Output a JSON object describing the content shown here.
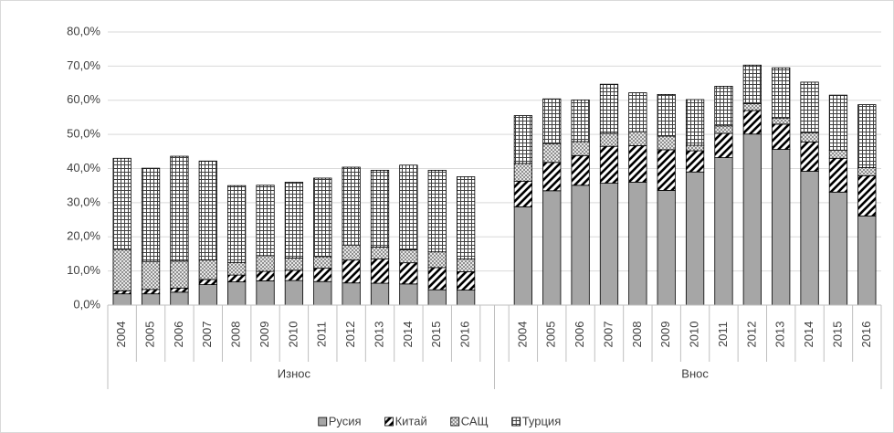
{
  "chart_data": {
    "type": "stacked_bar",
    "categories": [
      "2004",
      "2005",
      "2006",
      "2007",
      "2008",
      "2009",
      "2010",
      "2011",
      "2012",
      "2013",
      "2014",
      "2015",
      "2016",
      null,
      "2004",
      "2005",
      "2006",
      "2007",
      "2008",
      "2009",
      "2010",
      "2011",
      "2012",
      "2013",
      "2014",
      "2015",
      "2016"
    ],
    "group_labels": [
      "Износ",
      "Внос"
    ],
    "series": [
      {
        "name": "Русия",
        "color": "#a6a6a6",
        "pattern": "solid",
        "values": [
          3.3,
          3.3,
          3.8,
          6.0,
          6.8,
          7.1,
          7.2,
          6.9,
          6.5,
          6.4,
          6.2,
          4.5,
          4.4,
          null,
          28.8,
          33.5,
          35.1,
          35.7,
          36.0,
          33.6,
          39.0,
          43.2,
          50.1,
          45.6,
          39.2,
          33.1,
          26.1
        ]
      },
      {
        "name": "Китай",
        "color": "#000000",
        "pattern": "diagonal",
        "values": [
          0.9,
          1.3,
          1.2,
          1.5,
          2.0,
          2.8,
          3.0,
          3.9,
          6.7,
          7.1,
          6.2,
          6.5,
          5.4,
          null,
          7.5,
          8.3,
          8.7,
          10.8,
          10.7,
          11.9,
          6.2,
          7.1,
          6.9,
          7.4,
          8.6,
          9.9,
          11.8
        ]
      },
      {
        "name": "САЩ",
        "color": "#7f7f7f",
        "pattern": "crosshatch",
        "values": [
          12.1,
          8.2,
          7.9,
          5.7,
          3.7,
          4.6,
          3.6,
          3.4,
          4.4,
          3.5,
          3.8,
          4.6,
          3.7,
          null,
          5.2,
          5.5,
          4.1,
          3.8,
          4.1,
          4.0,
          1.6,
          2.2,
          2.0,
          1.8,
          2.7,
          2.4,
          2.4
        ]
      },
      {
        "name": "Турция",
        "color": "#404040",
        "pattern": "grid",
        "values": [
          26.7,
          27.3,
          30.7,
          29.0,
          22.5,
          20.6,
          22.2,
          23.0,
          22.8,
          22.5,
          24.8,
          23.9,
          24.1,
          null,
          14.0,
          13.1,
          12.2,
          14.4,
          11.4,
          12.2,
          13.4,
          11.6,
          11.3,
          14.7,
          14.8,
          16.1,
          18.4
        ]
      }
    ],
    "ylim": [
      0,
      80
    ],
    "yticks": [
      {
        "value": 0,
        "label": "0,0%"
      },
      {
        "value": 10,
        "label": "10,0%"
      },
      {
        "value": 20,
        "label": "20,0%"
      },
      {
        "value": 30,
        "label": "30,0%"
      },
      {
        "value": 40,
        "label": "40,0%"
      },
      {
        "value": 50,
        "label": "50,0%"
      },
      {
        "value": 60,
        "label": "60,0%"
      },
      {
        "value": 70,
        "label": "70,0%"
      },
      {
        "value": 80,
        "label": "80,0%"
      }
    ],
    "grid": true,
    "legend": "bottom"
  }
}
